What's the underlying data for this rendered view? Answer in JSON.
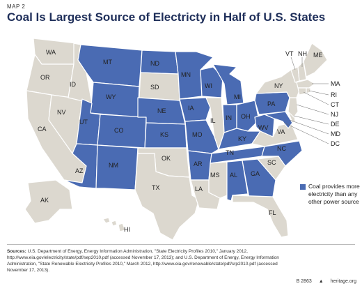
{
  "header": {
    "map_number": "MAP 2",
    "title": "Coal Is Largest Source of Electricty in Half of U.S. States"
  },
  "colors": {
    "coal_state": "#4a6bb3",
    "other_state": "#dcd8cf",
    "water": "#ffffff",
    "border": "#ffffff"
  },
  "legend": {
    "text": "Coal provides more electricity than any other power source"
  },
  "state_labels": {
    "WA": "WA",
    "OR": "OR",
    "ID": "ID",
    "CA": "CA",
    "NV": "NV",
    "MT": "MT",
    "WY": "WY",
    "UT": "UT",
    "AZ": "AZ",
    "CO": "CO",
    "NM": "NM",
    "ND": "ND",
    "SD": "SD",
    "NE": "NE",
    "KS": "KS",
    "OK": "OK",
    "TX": "TX",
    "MN": "MN",
    "IA": "IA",
    "MO": "MO",
    "AR": "AR",
    "LA": "LA",
    "WI": "WI",
    "IL": "IL",
    "MI": "MI",
    "IN": "IN",
    "OH": "OH",
    "KY": "KY",
    "TN": "TN",
    "MS": "MS",
    "AL": "AL",
    "GA": "GA",
    "FL": "FL",
    "SC": "SC",
    "NC": "NC",
    "VA": "VA",
    "WV": "WV",
    "PA": "PA",
    "NY": "NY",
    "VT": "VT",
    "NH": "NH",
    "ME": "ME",
    "MA": "MA",
    "RI": "RI",
    "CT": "CT",
    "NJ": "NJ",
    "DE": "DE",
    "MD": "MD",
    "DC": "DC",
    "AK": "AK",
    "HI": "HI"
  },
  "coal_states": [
    "MT",
    "WY",
    "UT",
    "AZ",
    "CO",
    "NM",
    "ND",
    "NE",
    "KS",
    "MN",
    "IA",
    "MO",
    "AR",
    "WI",
    "MI",
    "IN",
    "OH",
    "KY",
    "TN",
    "AL",
    "GA",
    "NC",
    "WV",
    "PA",
    "MD"
  ],
  "sources": {
    "label": "Sources:",
    "text": "U.S. Department of Energy, Energy Information Administration, \"State Electricity Profiles 2010,\" January 2012, http://www.eia.gov/electricity/state/pdf/sep2010.pdf (accessed November 17, 2013); and U.S. Department of Energy, Energy Information Administration, \"State Renewable Electricity Profiles 2010,\" March 2012, http://www.eia.gov/renewable/state/pdf/srp2010.pdf (accessed November 17, 2013)."
  },
  "footer": {
    "code": "B 2863",
    "site": "heritage.org"
  }
}
